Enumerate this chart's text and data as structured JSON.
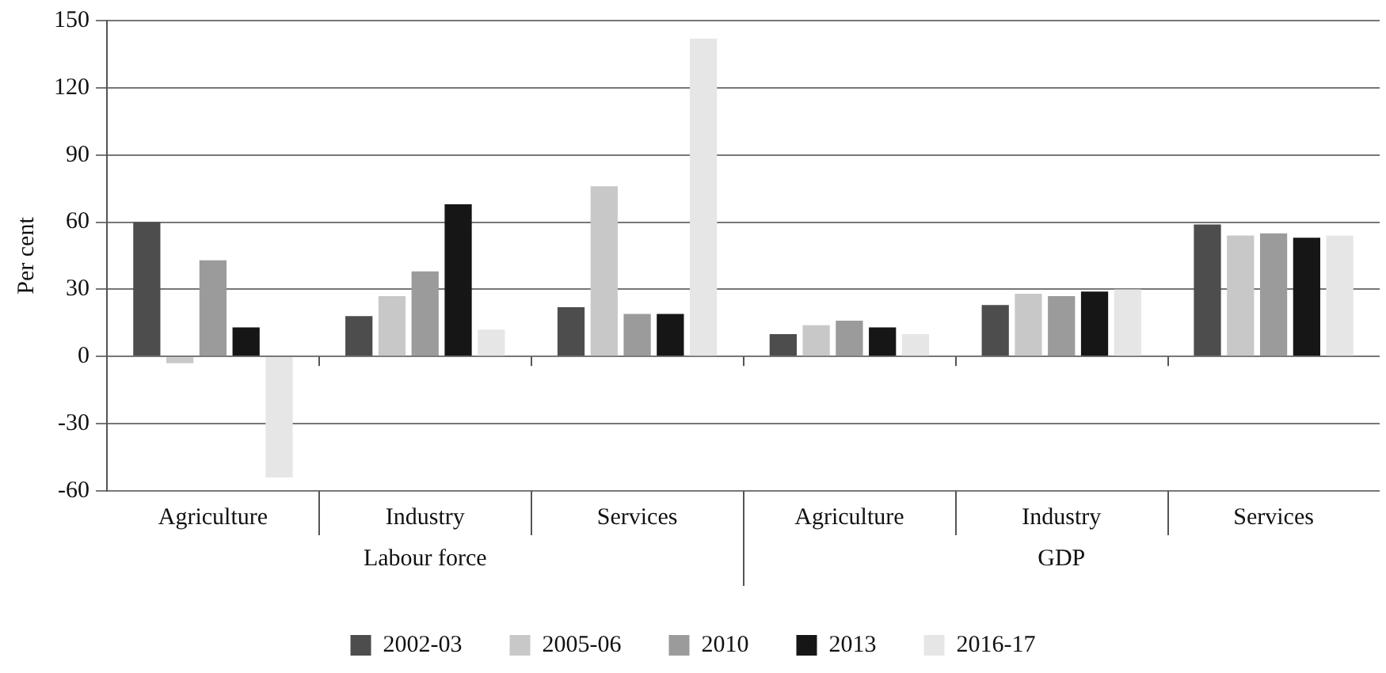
{
  "chart_data": {
    "type": "bar",
    "ylabel": "Per cent",
    "categories": [
      "Agriculture",
      "Industry",
      "Services",
      "Agriculture",
      "Industry",
      "Services"
    ],
    "annotations": [
      "Labour force",
      "GDP"
    ],
    "series": [
      {
        "name": "2002-03",
        "color": "#4d4d4d",
        "values": [
          60,
          18,
          22,
          10,
          23,
          59
        ]
      },
      {
        "name": "2005-06",
        "color": "#c8c8c8",
        "values": [
          -3,
          27,
          76,
          14,
          28,
          54
        ]
      },
      {
        "name": "2010",
        "color": "#9b9b9b",
        "values": [
          43,
          38,
          19,
          16,
          27,
          55
        ]
      },
      {
        "name": "2013",
        "color": "#161616",
        "values": [
          13,
          68,
          19,
          13,
          29,
          53
        ]
      },
      {
        "name": "2016-17",
        "color": "#e6e6e6",
        "values": [
          -54,
          12,
          142,
          10,
          30,
          54
        ]
      }
    ],
    "ylim": [
      -60,
      150
    ],
    "yticks": [
      -60,
      -30,
      0,
      30,
      60,
      90,
      120,
      150
    ],
    "grid": "y",
    "legend": "bottom"
  }
}
